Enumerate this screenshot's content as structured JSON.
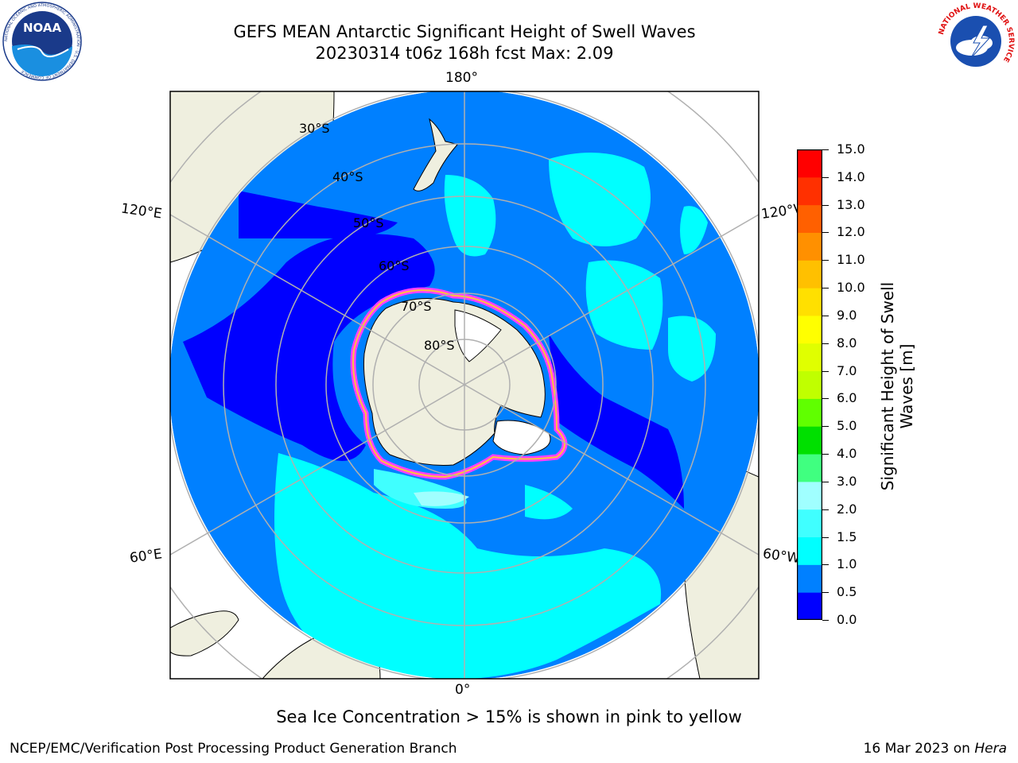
{
  "header": {
    "title_line1": "GEFS MEAN Antarctic Significant Height of Swell Waves",
    "title_line2": "20230314 t06z 168h fcst   Max: 2.09"
  },
  "logos": {
    "noaa": {
      "text": "NOAA",
      "ring_text": "NATIONAL OCEANIC AND ATMOSPHERIC ADMINISTRATION · U.S. DEPARTMENT OF COMMERCE"
    },
    "nws": {
      "ring_text": "NATIONAL WEATHER SERVICE"
    }
  },
  "map": {
    "projection": "south-polar-stereographic",
    "longitude_labels": [
      "180°",
      "120°E",
      "120°W",
      "60°E",
      "60°W",
      "0°"
    ],
    "latitude_labels": [
      "30°S",
      "40°S",
      "50°S",
      "60°S",
      "70°S",
      "80°S"
    ],
    "colors": {
      "ocean_fill": "#0080ff",
      "land": "#efefdf",
      "gridline": "#b0b0b0",
      "ice_edge": "#ff40ff"
    }
  },
  "colorbar": {
    "label": "Significant Height of Swell Waves [m]",
    "ticks": [
      "15.0",
      "14.0",
      "13.0",
      "12.0",
      "11.0",
      "10.0",
      "9.0",
      "8.0",
      "7.0",
      "6.0",
      "5.0",
      "4.0",
      "3.0",
      "2.0",
      "1.5",
      "1.0",
      "0.5",
      "0.0"
    ],
    "bins": [
      {
        "from": 0.0,
        "to": 0.5,
        "color": "#0000ff"
      },
      {
        "from": 0.5,
        "to": 1.0,
        "color": "#0080ff"
      },
      {
        "from": 1.0,
        "to": 1.5,
        "color": "#00ffff"
      },
      {
        "from": 1.5,
        "to": 2.0,
        "color": "#40ffff"
      },
      {
        "from": 2.0,
        "to": 3.0,
        "color": "#a0ffff"
      },
      {
        "from": 3.0,
        "to": 4.0,
        "color": "#40ff80"
      },
      {
        "from": 4.0,
        "to": 5.0,
        "color": "#00e000"
      },
      {
        "from": 5.0,
        "to": 6.0,
        "color": "#60ff00"
      },
      {
        "from": 6.0,
        "to": 7.0,
        "color": "#c0ff00"
      },
      {
        "from": 7.0,
        "to": 8.0,
        "color": "#e0ff00"
      },
      {
        "from": 8.0,
        "to": 9.0,
        "color": "#ffff00"
      },
      {
        "from": 9.0,
        "to": 10.0,
        "color": "#ffe000"
      },
      {
        "from": 10.0,
        "to": 11.0,
        "color": "#ffc000"
      },
      {
        "from": 11.0,
        "to": 12.0,
        "color": "#ff9000"
      },
      {
        "from": 12.0,
        "to": 13.0,
        "color": "#ff6000"
      },
      {
        "from": 13.0,
        "to": 14.0,
        "color": "#ff3000"
      },
      {
        "from": 14.0,
        "to": 15.0,
        "color": "#ff0000"
      }
    ]
  },
  "footer": {
    "note": "Sea Ice Concentration > 15% is shown in pink to yellow",
    "credit": "NCEP/EMC/Verification Post Processing Product Generation Branch",
    "date": "16 Mar 2023 on",
    "host": "Hera"
  }
}
